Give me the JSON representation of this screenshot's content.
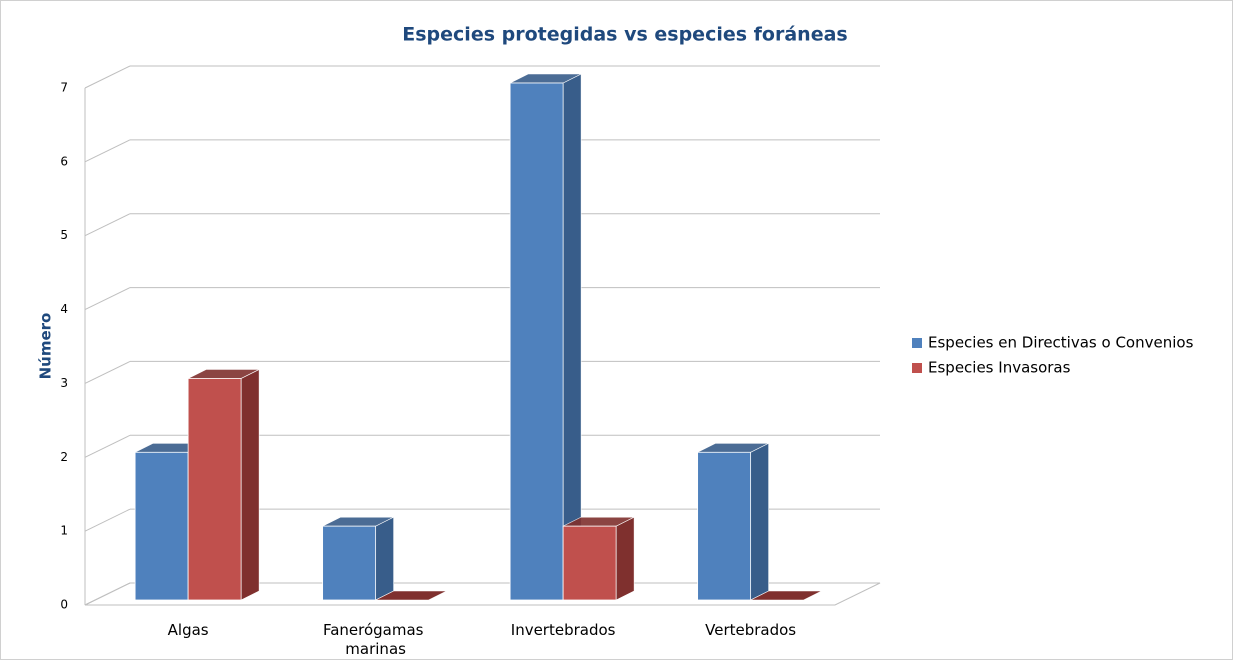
{
  "chart_data": {
    "type": "bar3d",
    "title": "Especies protegidas vs especies foráneas",
    "y_label": "Número",
    "categories": [
      "Algas",
      "Fanerógamas marinas",
      "Invertebrados",
      "Vertebrados"
    ],
    "series": [
      {
        "name": "Especies en Directivas o Convenios",
        "color": "#4f81bd",
        "side": "#385d8a",
        "values": [
          2,
          1,
          7,
          2
        ]
      },
      {
        "name": "Especies Invasoras",
        "color": "#c0504d",
        "side": "#7f302e",
        "values": [
          3,
          0,
          1,
          0
        ]
      }
    ],
    "ylim": [
      0,
      7
    ],
    "yticks": [
      0,
      1,
      2,
      3,
      4,
      5,
      6,
      7
    ],
    "grid": true,
    "legend": "right"
  }
}
